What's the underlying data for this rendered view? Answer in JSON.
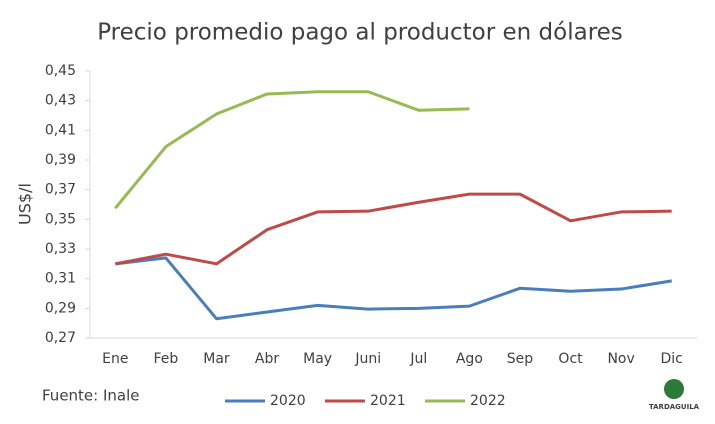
{
  "chart_data": {
    "type": "line",
    "title": "Precio promedio pago al productor en dólares",
    "y_label": "US$/l",
    "source": "Fuente: Inale",
    "logo": "TARDAGUILA",
    "categories": [
      "Ene",
      "Feb",
      "Mar",
      "Abr",
      "May",
      "Juni",
      "Jul",
      "Ago",
      "Sep",
      "Oct",
      "Nov",
      "Dic"
    ],
    "series": [
      {
        "name": "2020",
        "color": "#4a7ebb",
        "values": [
          0.32,
          0.324,
          0.283,
          0.2875,
          0.292,
          0.2895,
          0.29,
          0.2915,
          0.3035,
          0.3015,
          0.303,
          0.3085
        ]
      },
      {
        "name": "2021",
        "color": "#be4b48",
        "values": [
          0.32,
          0.3265,
          0.32,
          0.343,
          0.355,
          0.3555,
          0.3615,
          0.367,
          0.367,
          0.349,
          0.355,
          0.3555
        ]
      },
      {
        "name": "2022",
        "color": "#98b954",
        "values": [
          0.3575,
          0.399,
          0.421,
          0.4345,
          0.436,
          0.436,
          0.4235,
          0.4245,
          null,
          null,
          null,
          null
        ]
      }
    ],
    "ylim": [
      0.27,
      0.45
    ],
    "yticks": [
      {
        "value": 0.27,
        "label": "0,27"
      },
      {
        "value": 0.29,
        "label": "0,29"
      },
      {
        "value": 0.31,
        "label": "0,31"
      },
      {
        "value": 0.33,
        "label": "0,33"
      },
      {
        "value": 0.35,
        "label": "0,35"
      },
      {
        "value": 0.37,
        "label": "0,37"
      },
      {
        "value": 0.39,
        "label": "0,39"
      },
      {
        "value": 0.41,
        "label": "0,41"
      },
      {
        "value": 0.43,
        "label": "0,43"
      },
      {
        "value": 0.45,
        "label": "0,45"
      }
    ],
    "grid": false,
    "legend": "bottom"
  }
}
